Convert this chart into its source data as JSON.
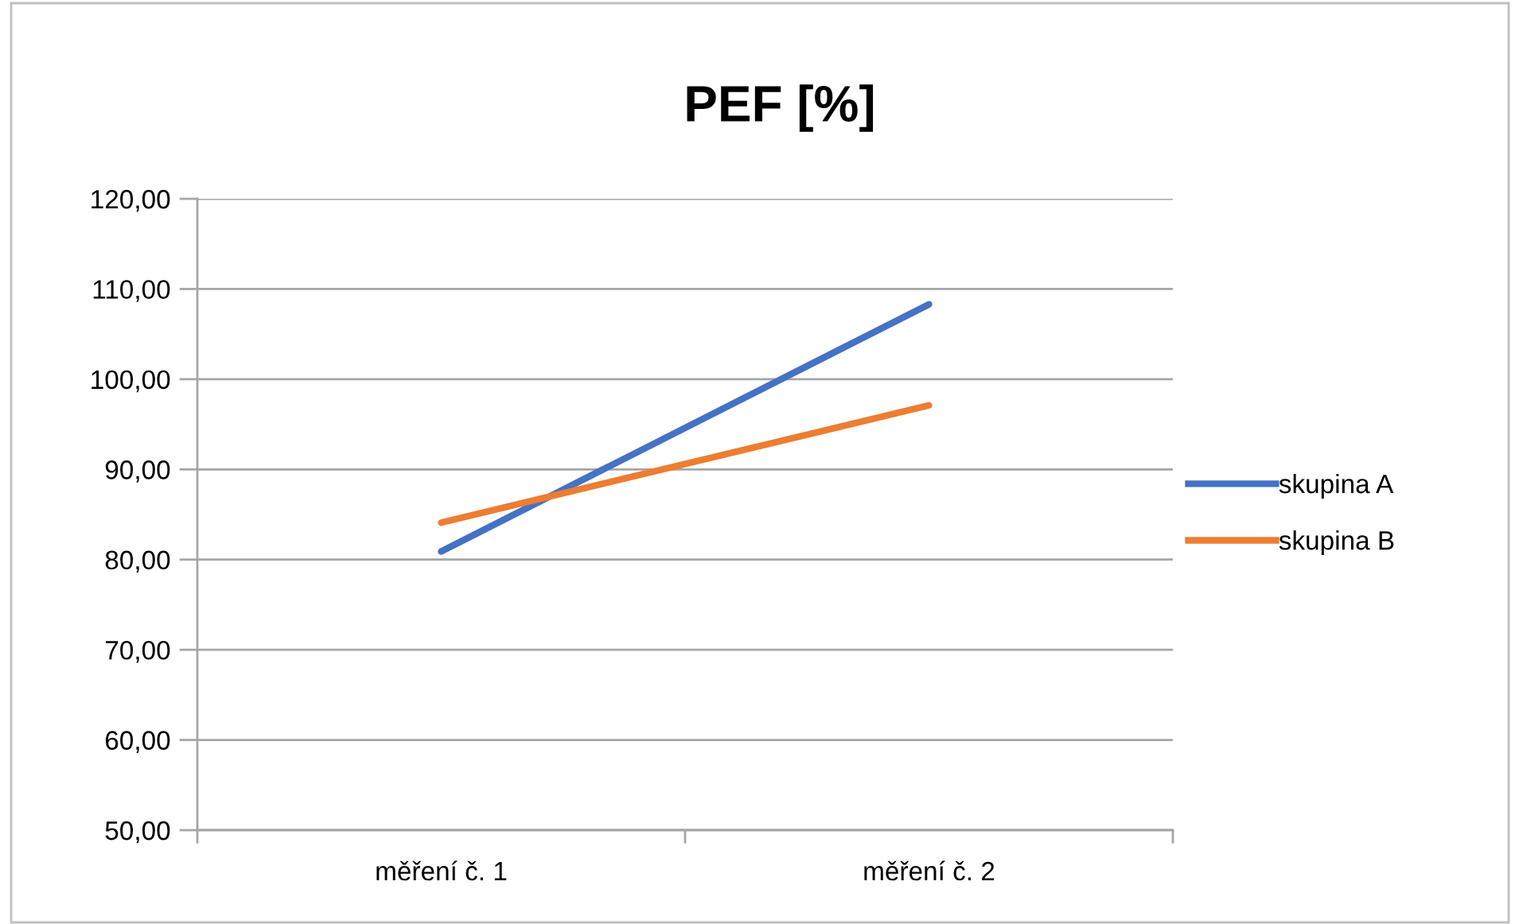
{
  "chart_data": {
    "type": "line",
    "title": "PEF [%]",
    "categories": [
      "měření č. 1",
      "měření č. 2"
    ],
    "series": [
      {
        "name": "skupina A",
        "color": "#4472c4",
        "values": [
          80.9,
          108.3
        ]
      },
      {
        "name": "skupina B",
        "color": "#ed7d31",
        "values": [
          84.1,
          97.1
        ]
      }
    ],
    "ylim": [
      50,
      120
    ],
    "yticks": [
      {
        "value": 50,
        "label": "50,00"
      },
      {
        "value": 60,
        "label": "60,00"
      },
      {
        "value": 70,
        "label": "70,00"
      },
      {
        "value": 80,
        "label": "80,00"
      },
      {
        "value": 90,
        "label": "90,00"
      },
      {
        "value": 100,
        "label": "100,00"
      },
      {
        "value": 110,
        "label": "110,00"
      },
      {
        "value": 120,
        "label": "120,00"
      }
    ],
    "grid": "y",
    "legend": "right",
    "marker": "none",
    "line_style": "solid"
  }
}
